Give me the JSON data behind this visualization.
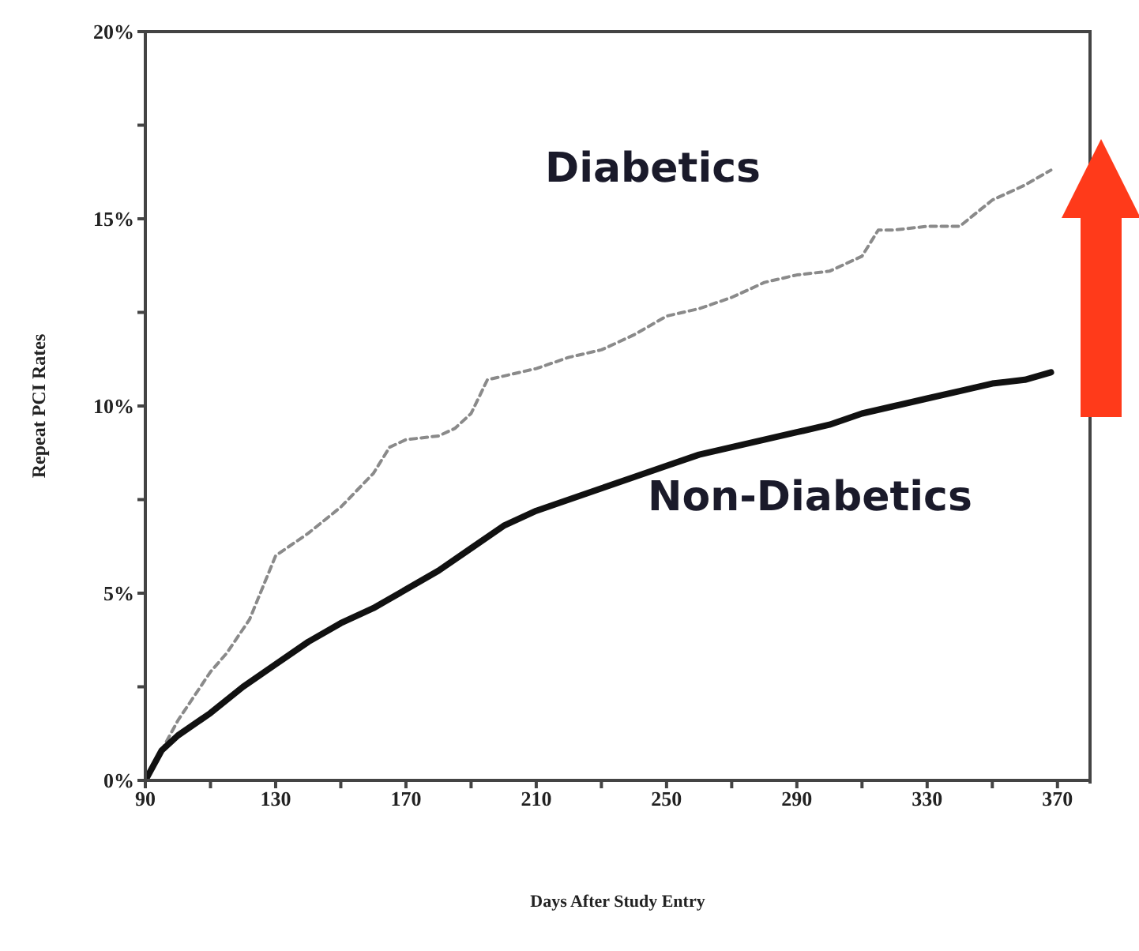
{
  "chart_data": {
    "type": "line",
    "xlabel": "Days After Study Entry",
    "ylabel": "Repeat PCI Rates",
    "xlim": [
      90,
      380
    ],
    "xticks": [
      90,
      {
        "value": 110,
        "label": null
      },
      130,
      {
        "value": 150,
        "label": null
      },
      170,
      {
        "value": 190,
        "label": null
      },
      210,
      {
        "value": 230,
        "label": null
      },
      250,
      {
        "value": 270,
        "label": null
      },
      290,
      {
        "value": 310,
        "label": null
      },
      330,
      {
        "value": 350,
        "label": null
      },
      370
    ],
    "ylim": [
      0,
      20
    ],
    "yticks": [
      {
        "value": 0,
        "label": "0%"
      },
      {
        "value": 2.5,
        "label": null
      },
      {
        "value": 5,
        "label": "5%"
      },
      {
        "value": 7.5,
        "label": null
      },
      {
        "value": 10,
        "label": "10%"
      },
      {
        "value": 12.5,
        "label": null
      },
      {
        "value": 15,
        "label": "15%"
      },
      {
        "value": 17.5,
        "label": null
      },
      {
        "value": 20,
        "label": "20%"
      }
    ],
    "marker": "none",
    "series": [
      {
        "name": "Diabetics",
        "color": "#8a8a8a",
        "line_style": "dashed",
        "x": [
          90,
          100,
          110,
          115,
          122,
          130,
          140,
          150,
          160,
          165,
          170,
          180,
          185,
          190,
          195,
          200,
          210,
          220,
          230,
          240,
          250,
          260,
          270,
          280,
          290,
          300,
          310,
          315,
          320,
          330,
          340,
          350,
          360,
          368
        ],
        "values": [
          0,
          1.6,
          2.9,
          3.4,
          4.3,
          6.0,
          6.6,
          7.3,
          8.2,
          8.9,
          9.1,
          9.2,
          9.4,
          9.8,
          10.7,
          10.8,
          11.0,
          11.3,
          11.5,
          11.9,
          12.4,
          12.6,
          12.9,
          13.3,
          13.5,
          13.6,
          14.0,
          14.7,
          14.7,
          14.8,
          14.8,
          15.5,
          15.9,
          16.3
        ]
      },
      {
        "name": "Non-Diabetics",
        "color": "#111111",
        "line_style": "solid",
        "x": [
          90,
          95,
          100,
          110,
          120,
          130,
          140,
          150,
          160,
          170,
          180,
          190,
          200,
          210,
          220,
          230,
          240,
          250,
          260,
          270,
          280,
          290,
          300,
          310,
          320,
          330,
          340,
          350,
          360,
          368
        ],
        "values": [
          0,
          0.8,
          1.2,
          1.8,
          2.5,
          3.1,
          3.7,
          4.2,
          4.6,
          5.1,
          5.6,
          6.2,
          6.8,
          7.2,
          7.5,
          7.8,
          8.1,
          8.4,
          8.7,
          8.9,
          9.1,
          9.3,
          9.5,
          9.8,
          10.0,
          10.2,
          10.4,
          10.6,
          10.7,
          10.9
        ]
      }
    ]
  }
}
